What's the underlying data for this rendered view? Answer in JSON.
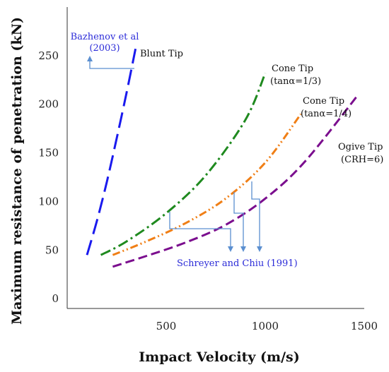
{
  "chart_data": {
    "type": "line",
    "xlabel": "Impact Velocity (m/s)",
    "ylabel": "Maximum resistance of penetration (kN)",
    "xlim": [
      0,
      1500
    ],
    "ylim": [
      -10,
      300
    ],
    "xticks": [
      500,
      1000,
      1500
    ],
    "yticks": [
      0,
      50,
      100,
      150,
      200,
      250
    ],
    "grid": false,
    "series": [
      {
        "name": "Blunt Tip",
        "color": "#1a1aee",
        "dash": "long-dash",
        "x": [
          100,
          150,
          200,
          250,
          300,
          345
        ],
        "y": [
          45,
          80,
          120,
          165,
          212,
          257
        ]
      },
      {
        "name": "Cone Tip (tanα=1/3)",
        "color": "#1f8a1f",
        "dash": "dash-dot",
        "x": [
          170,
          300,
          500,
          700,
          900,
          1000
        ],
        "y": [
          45,
          59,
          88,
          127,
          184,
          232
        ]
      },
      {
        "name": "Cone Tip (tanα=1/4)",
        "color": "#f07f16",
        "dash": "dash-dot-dot",
        "x": [
          230,
          400,
          600,
          800,
          1000,
          1180
        ],
        "y": [
          45,
          59,
          78,
          103,
          140,
          190
        ]
      },
      {
        "name": "Ogive Tip (CRH=6)",
        "color": "#7b0e8e",
        "dash": "dash",
        "x": [
          230,
          400,
          600,
          800,
          1000,
          1200,
          1470
        ],
        "y": [
          33,
          44,
          58,
          76,
          103,
          141,
          210
        ]
      }
    ],
    "annotations": {
      "bazhenov_line1": "Bazhenov et al",
      "bazhenov_line2": "(2003)",
      "blunt": "Blunt Tip",
      "cone13_line1": "Cone Tip",
      "cone13_line2": "(tanα=1/3)",
      "cone14_line1": "Cone Tip",
      "cone14_line2": "(tanα=1/4)",
      "ogive_line1": "Ogive Tip",
      "ogive_line2": "(CRH=6)",
      "schreyer": "Schreyer and Chiu (1991)"
    },
    "annotation_colors": {
      "bazhenov": "#2b2bd8",
      "schreyer": "#2b2bd8",
      "curve_labels": "#111111",
      "leader": "#5b8fd0"
    }
  }
}
